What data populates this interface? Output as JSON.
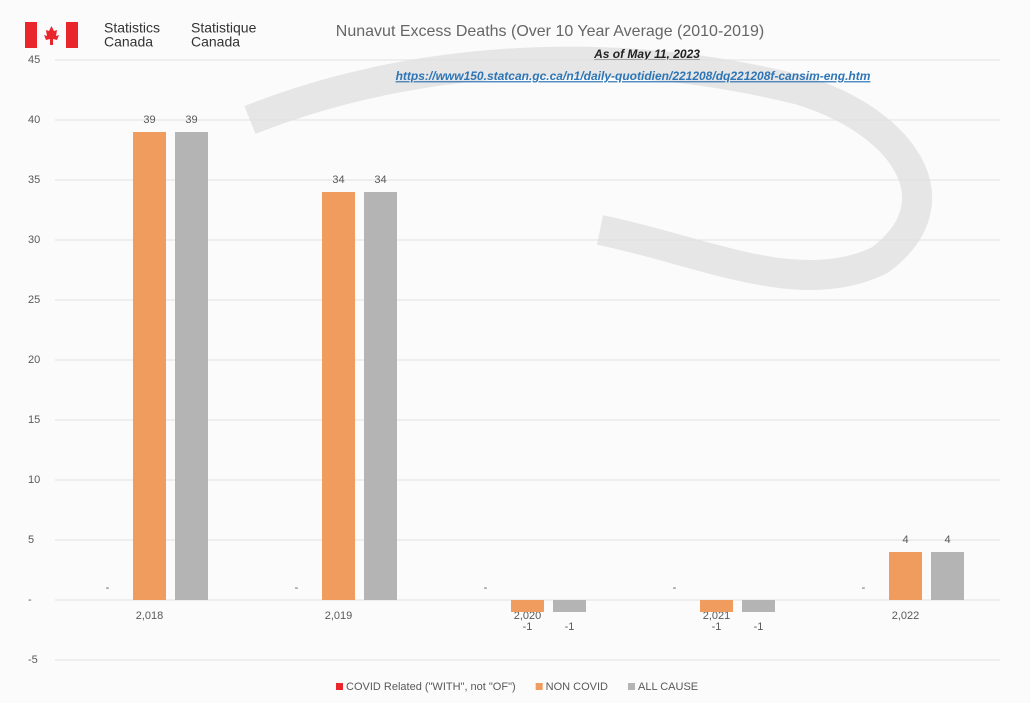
{
  "chart_data": {
    "type": "bar",
    "logo_text": [
      "Statistics",
      "Canada",
      "Statistique",
      "Canada"
    ],
    "title": "Nunavut Excess Deaths (Over 10 Year Average (2010-2019)",
    "subtitle": "As of May 11, 2023",
    "source_url": "https://www150.statcan.gc.ca/n1/daily-quotidien/221208/dq221208f-cansim-eng.htm",
    "categories": [
      "2,018",
      "2,019",
      "2,020",
      "2,021",
      "2,022"
    ],
    "series": [
      {
        "name": "COVID Related (\"WITH\", not \"OF\")",
        "color": "#e8262b",
        "values": [
          0,
          0,
          0,
          0,
          0
        ],
        "value_labels": [
          "-",
          "-",
          "-",
          "-",
          "-"
        ]
      },
      {
        "name": "NON COVID",
        "color": "#f19c5f",
        "values": [
          39,
          34,
          -1,
          -1,
          4
        ]
      },
      {
        "name": "ALL CAUSE",
        "color": "#b4b4b4",
        "values": [
          39,
          34,
          -1,
          -1,
          4
        ]
      }
    ],
    "ylim": [
      -5,
      45
    ],
    "yticks": [
      -5,
      {
        "value": 0,
        "label": "-"
      },
      5,
      10,
      15,
      20,
      25,
      30,
      35,
      40,
      45
    ],
    "grid": true,
    "legend": "bottom"
  }
}
